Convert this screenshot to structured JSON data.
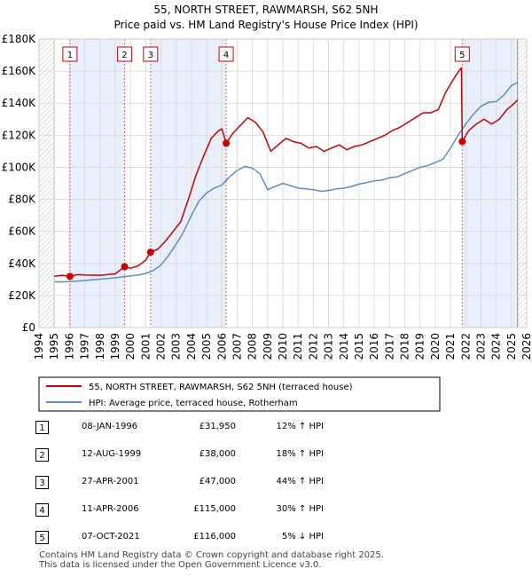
{
  "chart_data": {
    "type": "line",
    "title": "55, NORTH STREET, RAWMARSH, S62 5NH",
    "subtitle": "Price paid vs. HM Land Registry's House Price Index (HPI)",
    "xlim": [
      1994,
      2026
    ],
    "ylim": [
      0,
      180000
    ],
    "x_ticks": [
      "1994",
      "1995",
      "1996",
      "1997",
      "1998",
      "1999",
      "2000",
      "2001",
      "2002",
      "2003",
      "2004",
      "2005",
      "2006",
      "2007",
      "2008",
      "2009",
      "2010",
      "2011",
      "2012",
      "2013",
      "2014",
      "2015",
      "2016",
      "2017",
      "2018",
      "2019",
      "2020",
      "2021",
      "2022",
      "2023",
      "2024",
      "2025",
      "2026"
    ],
    "y_ticks": [
      {
        "value": 0,
        "label": "£0"
      },
      {
        "value": 20000,
        "label": "£20K"
      },
      {
        "value": 40000,
        "label": "£40K"
      },
      {
        "value": 60000,
        "label": "£60K"
      },
      {
        "value": 80000,
        "label": "£80K"
      },
      {
        "value": 100000,
        "label": "£100K"
      },
      {
        "value": 120000,
        "label": "£120K"
      },
      {
        "value": 140000,
        "label": "£140K"
      },
      {
        "value": 160000,
        "label": "£160K"
      },
      {
        "value": 180000,
        "label": "£180K"
      }
    ],
    "data_start_year": 1995,
    "data_end_year": 2025.4,
    "hatched_before": 1995,
    "hatched_after": 2025.4,
    "shaded_spans": [
      [
        1996.03,
        1999.62
      ],
      [
        2001.32,
        2006.28
      ],
      [
        2021.77,
        2025.4
      ]
    ],
    "series": [
      {
        "name": "55, NORTH STREET, RAWMARSH, S62 5NH (terraced house)",
        "color": "#cc0000",
        "x": [
          1995.0,
          1995.5,
          1996.03,
          1996.5,
          1997,
          1998,
          1999,
          1999.62,
          2000,
          2000.5,
          2001,
          2001.32,
          2001.8,
          2002.3,
          2002.8,
          2003.3,
          2003.8,
          2004.3,
          2004.8,
          2005.3,
          2005.8,
          2006.0,
          2006.28,
          2006.7,
          2007.2,
          2007.7,
          2008.2,
          2008.7,
          2009.2,
          2009.7,
          2010.2,
          2010.7,
          2011.2,
          2011.7,
          2012.2,
          2012.7,
          2013.2,
          2013.7,
          2014.2,
          2014.7,
          2015.2,
          2015.7,
          2016.2,
          2016.7,
          2017.2,
          2017.7,
          2018.2,
          2018.7,
          2019.2,
          2019.7,
          2020.2,
          2020.7,
          2021.2,
          2021.55,
          2021.72,
          2021.77,
          2022.2,
          2022.7,
          2023.2,
          2023.7,
          2024.2,
          2024.7,
          2025.2,
          2025.4
        ],
        "values": [
          32000,
          32600,
          31950,
          33000,
          32800,
          32600,
          33500,
          38000,
          37000,
          38500,
          42000,
          47000,
          49000,
          54000,
          60000,
          66000,
          80000,
          95000,
          107000,
          118000,
          123000,
          124000,
          115000,
          121000,
          126000,
          131000,
          128000,
          122000,
          110000,
          114000,
          118000,
          116000,
          115000,
          112000,
          113000,
          110000,
          112000,
          114000,
          111000,
          113000,
          114000,
          116000,
          118000,
          120000,
          123000,
          125000,
          128000,
          131000,
          134000,
          134000,
          136000,
          147000,
          155000,
          160000,
          162000,
          116000,
          123000,
          127000,
          130000,
          127000,
          130000,
          136000,
          140000,
          142000
        ]
      },
      {
        "name": "HPI: Average price, terraced house, Rotherham",
        "color": "#5b8fc9",
        "x": [
          1995.0,
          1995.5,
          1996,
          1996.5,
          1997,
          1998,
          1999,
          1999.5,
          2000,
          2000.5,
          2001,
          2001.5,
          2002,
          2002.5,
          2003,
          2003.5,
          2004,
          2004.5,
          2005,
          2005.5,
          2006,
          2006.5,
          2007,
          2007.5,
          2008,
          2008.5,
          2009,
          2009.5,
          2010,
          2010.5,
          2011,
          2011.5,
          2012,
          2012.5,
          2013,
          2013.5,
          2014,
          2014.5,
          2015,
          2015.5,
          2016,
          2016.5,
          2017,
          2017.5,
          2018,
          2018.5,
          2019,
          2019.5,
          2020,
          2020.5,
          2021,
          2021.5,
          2022,
          2022.5,
          2023,
          2023.5,
          2024,
          2024.5,
          2025,
          2025.4
        ],
        "values": [
          28500,
          28500,
          28700,
          29000,
          29400,
          30200,
          31000,
          31700,
          32200,
          32800,
          33800,
          35600,
          39000,
          45000,
          52000,
          60000,
          70000,
          79000,
          84000,
          87000,
          89000,
          94000,
          98000,
          100500,
          99500,
          96000,
          86000,
          88000,
          90000,
          88500,
          87000,
          86500,
          86000,
          85000,
          85500,
          86500,
          87000,
          88000,
          89500,
          90500,
          91500,
          92000,
          93500,
          94000,
          96000,
          98000,
          100000,
          101000,
          103000,
          105000,
          112000,
          120000,
          127000,
          133000,
          138000,
          140500,
          141000,
          145000,
          151000,
          153000
        ]
      }
    ],
    "sales": [
      {
        "n": "1",
        "x": 1996.03,
        "value": 31950
      },
      {
        "n": "2",
        "x": 1999.62,
        "value": 38000
      },
      {
        "n": "3",
        "x": 2001.32,
        "value": 47000
      },
      {
        "n": "4",
        "x": 2006.28,
        "value": 115000
      },
      {
        "n": "5",
        "x": 2021.77,
        "value": 116000
      }
    ],
    "legend_position": "below"
  },
  "table": {
    "rows": [
      {
        "n": "1",
        "date": "08-JAN-1996",
        "price": "£31,950",
        "hpi": "12% ↑ HPI"
      },
      {
        "n": "2",
        "date": "12-AUG-1999",
        "price": "£38,000",
        "hpi": "18% ↑ HPI"
      },
      {
        "n": "3",
        "date": "27-APR-2001",
        "price": "£47,000",
        "hpi": "44% ↑ HPI"
      },
      {
        "n": "4",
        "date": "11-APR-2006",
        "price": "£115,000",
        "hpi": "30% ↑ HPI"
      },
      {
        "n": "5",
        "date": "07-OCT-2021",
        "price": "£116,000",
        "hpi": "5% ↓ HPI"
      }
    ]
  },
  "footer": {
    "line1": "Contains HM Land Registry data © Crown copyright and database right 2025.",
    "line2": "This data is licensed under the Open Government Licence v3.0."
  }
}
